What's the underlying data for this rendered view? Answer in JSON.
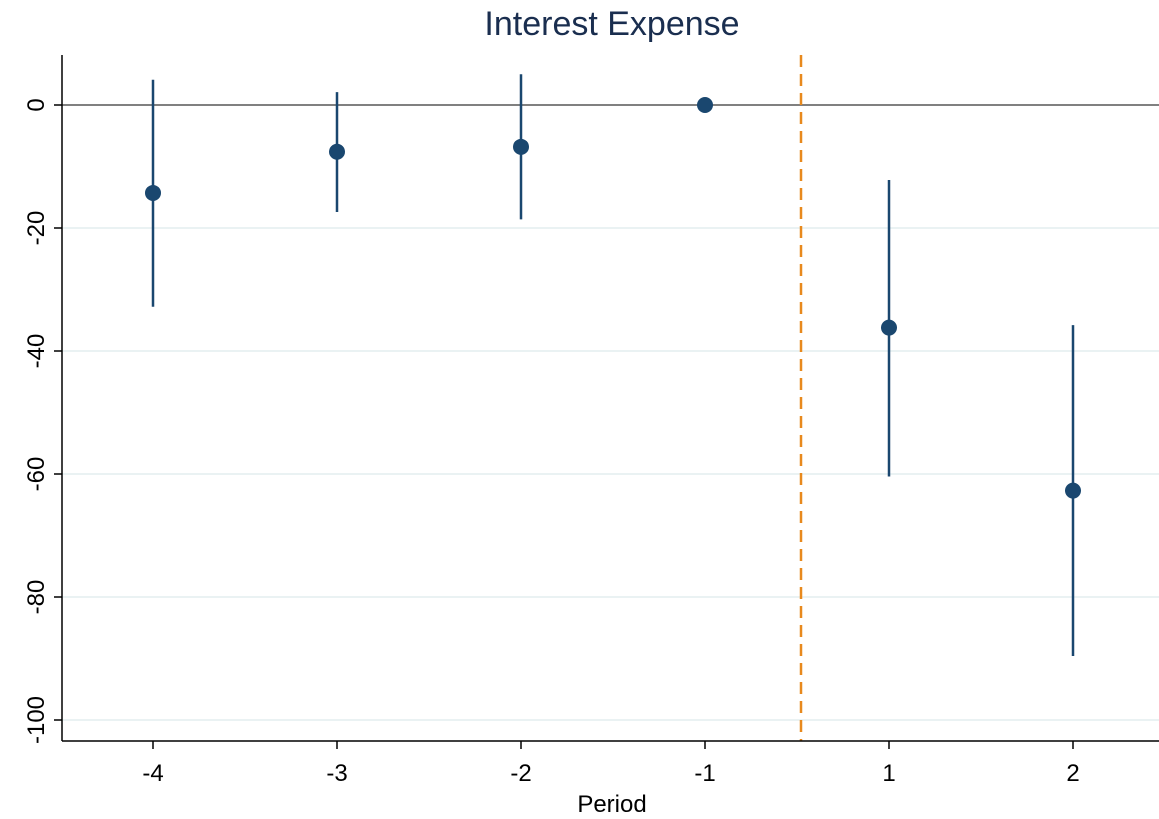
{
  "chart_data": {
    "type": "scatter",
    "title": "Interest Expense",
    "xlabel": "Period",
    "ylabel": "",
    "categories": [
      "-4",
      "-3",
      "-2",
      "-1",
      "1",
      "2"
    ],
    "points": [
      {
        "period": "-4",
        "estimate": -14.3,
        "ci_low": -32.8,
        "ci_high": 4.1
      },
      {
        "period": "-3",
        "estimate": -7.6,
        "ci_low": -17.4,
        "ci_high": 2.1
      },
      {
        "period": "-2",
        "estimate": -6.8,
        "ci_low": -18.6,
        "ci_high": 5.0
      },
      {
        "period": "-1",
        "estimate": 0.0,
        "ci_low": 0.0,
        "ci_high": 0.0
      },
      {
        "period": "1",
        "estimate": -36.2,
        "ci_low": -60.4,
        "ci_high": -12.2
      },
      {
        "period": "2",
        "estimate": -62.7,
        "ci_low": -89.6,
        "ci_high": -35.8
      }
    ],
    "yticks": [
      0,
      -20,
      -40,
      -60,
      -80,
      -100
    ],
    "ylim": [
      -102.5,
      7.5
    ],
    "reference_line_y": 0,
    "treatment_line_between": [
      "-1",
      "1"
    ],
    "grid": true,
    "colors": {
      "marker": "#1a476f",
      "ci": "#1a476f",
      "zero_line": "#808080",
      "treatment_line": "#e8891d",
      "gridline": "#eaf2f3",
      "title": "#1a2e4f"
    }
  }
}
